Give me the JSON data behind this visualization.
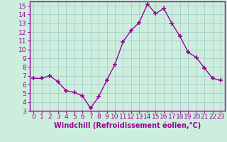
{
  "x": [
    0,
    1,
    2,
    3,
    4,
    5,
    6,
    7,
    8,
    9,
    10,
    11,
    12,
    13,
    14,
    15,
    16,
    17,
    18,
    19,
    20,
    21,
    22,
    23
  ],
  "y": [
    6.7,
    6.7,
    7.0,
    6.3,
    5.3,
    5.1,
    4.7,
    3.3,
    4.6,
    6.5,
    8.3,
    10.9,
    12.2,
    13.1,
    15.2,
    14.1,
    14.7,
    13.0,
    11.5,
    9.7,
    9.1,
    7.9,
    6.7,
    6.5
  ],
  "xlabel": "Windchill (Refroidissement éolien,°C)",
  "ylim": [
    3,
    15.5
  ],
  "xlim": [
    -0.5,
    23.5
  ],
  "yticks": [
    3,
    4,
    5,
    6,
    7,
    8,
    9,
    10,
    11,
    12,
    13,
    14,
    15
  ],
  "xtick_labels": [
    "0",
    "1",
    "2",
    "3",
    "4",
    "5",
    "6",
    "7",
    "8",
    "9",
    "10",
    "11",
    "12",
    "13",
    "14",
    "15",
    "16",
    "17",
    "18",
    "19",
    "20",
    "21",
    "22",
    "23"
  ],
  "line_color": "#990099",
  "marker": "+",
  "bg_color": "#cceedd",
  "grid_color": "#aacccc",
  "xlabel_fontsize": 7,
  "tick_fontsize": 6.5,
  "linewidth": 1.0,
  "markersize": 4
}
